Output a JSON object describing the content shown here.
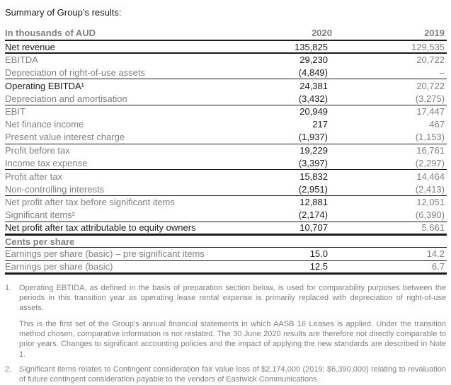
{
  "title": "Summary of Group’s results:",
  "colors": {
    "text_black": "#1a1a1a",
    "text_gray": "#7e8084",
    "rule_black": "#1a1a1a",
    "background": "#ffffff"
  },
  "table": {
    "header": {
      "label": "In thousands of AUD",
      "col2020": "2020",
      "col2019": "2019"
    },
    "rows": [
      {
        "label": "Net revenue",
        "v2020": "135,825",
        "v2019": "129,535",
        "emphasis": true,
        "border": "med"
      },
      {
        "label": "EBITDA",
        "v2020": "29,230",
        "v2019": "20,722"
      },
      {
        "label": "Depreciation of right-of-use assets",
        "v2020": "(4,849)",
        "v2019": "–",
        "border": "thin"
      },
      {
        "label": "Operating EBITDA¹",
        "v2020": "24,381",
        "v2019": "20,722",
        "emphasis": true
      },
      {
        "label": "Depreciation and amortisation",
        "v2020": "(3,432)",
        "v2019": "(3,275)",
        "border": "thin"
      },
      {
        "label": "EBIT",
        "v2020": "20,949",
        "v2019": "17,447"
      },
      {
        "label": "Net finance income",
        "v2020": "217",
        "v2019": "467"
      },
      {
        "label": "Present value interest charge",
        "v2020": "(1,937)",
        "v2019": "(1,153)",
        "border": "thin"
      },
      {
        "label": "Profit before tax",
        "v2020": "19,229",
        "v2019": "16,761"
      },
      {
        "label": "Income tax expense",
        "v2020": "(3,397)",
        "v2019": "(2,297)",
        "border": "thin"
      },
      {
        "label": "Profit after tax",
        "v2020": "15,832",
        "v2019": "14,464"
      },
      {
        "label": "Non-controlling interests",
        "v2020": "(2,951)",
        "v2019": "(2,413)",
        "border": "thin"
      },
      {
        "label": "Net profit after tax before significant items",
        "v2020": "12,881",
        "v2019": "12,051"
      },
      {
        "label": "Significant items²",
        "v2020": "(2,174)",
        "v2019": "(6,390)",
        "border": "thin"
      },
      {
        "label": "Net profit after tax attributable to equity owners",
        "v2020": "10,707",
        "v2019": "5,661",
        "emphasis": true,
        "border": "thick"
      },
      {
        "label": "Cents per share",
        "v2020": "",
        "v2019": "",
        "section": true,
        "border": "thin"
      },
      {
        "label": "Earnings per share (basic) – pre significant items",
        "v2020": "15.0",
        "v2019": "14.2",
        "border": "thin"
      },
      {
        "label": "Earnings per share (basic)",
        "v2020": "12.5",
        "v2019": "6.7",
        "border": "thick"
      }
    ]
  },
  "footnotes": [
    {
      "marker": "1.",
      "paragraphs": [
        "Operating EBTIDA, as defined in the basis of preparation section below, is used for comparability purposes between the periods in this transition year as operating lease rental expense is primarily replaced with depreciation of right-of-use assets.",
        "This is the first set of the Group’s annual financial statements in which AASB 16 Leases is applied. Under the transition method chosen, comparative information is not restated. The 30 June 2020 results are therefore not directly comparable to prior years. Changes to significant accounting policies and the impact of applying the new standards are described in Note 1."
      ]
    },
    {
      "marker": "2.",
      "paragraphs": [
        "Significant items relates to Contingent consideration fair value loss of $2,174,000 (2019: $6,390,000) relating to revaluation of future contingent consideration payable to the vendors of Eastwick Communications."
      ]
    }
  ]
}
